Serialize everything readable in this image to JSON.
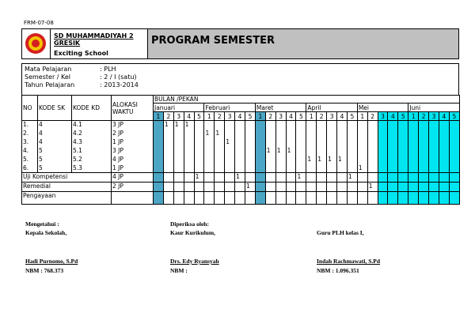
{
  "form_code": "FRM-07-08",
  "header": {
    "school": "SD MUHAMMADIYAH 2 GRESIK",
    "motto": "Exciting School",
    "title": "PROGRAM SEMESTER"
  },
  "info": [
    {
      "label": "Mata Pelajaran",
      "value": ": PLH"
    },
    {
      "label": "Semester / Kel",
      "value": ": 2 / I (satu)"
    },
    {
      "label": "Tahun Pelajaran",
      "value": ": 2013-2014"
    }
  ],
  "table": {
    "columns": [
      "NO",
      "KODE SK",
      "KODE KD",
      "ALOKASI WAKTU"
    ],
    "period_header": "BULAN /PEKAN",
    "months": [
      {
        "name": "Januari",
        "weeks": [
          1,
          2,
          3,
          4,
          5
        ]
      },
      {
        "name": "Februari",
        "weeks": [
          1,
          2,
          3,
          4,
          5
        ]
      },
      {
        "name": "Maret",
        "weeks": [
          1,
          2,
          3,
          4,
          5
        ]
      },
      {
        "name": "April",
        "weeks": [
          1,
          2,
          3,
          4,
          5
        ]
      },
      {
        "name": "Mei",
        "weeks": [
          1,
          2,
          3,
          4,
          5
        ]
      },
      {
        "name": "Juni",
        "weeks": [
          1,
          2,
          3,
          4,
          5
        ]
      }
    ],
    "rows": [
      {
        "no": "1.",
        "sk": 4,
        "kd": "4.1",
        "jp": "3 JP",
        "weeks": [
          null,
          1,
          1,
          1,
          null,
          null,
          null,
          null,
          null,
          null,
          null,
          null,
          null,
          null,
          null,
          null,
          null,
          null,
          null,
          null,
          null,
          null,
          null,
          null,
          null,
          null,
          null,
          null,
          null,
          null
        ]
      },
      {
        "no": "2.",
        "sk": 4,
        "kd": "4.2",
        "jp": "2 JP",
        "weeks": [
          null,
          null,
          null,
          null,
          null,
          1,
          1,
          null,
          null,
          null,
          null,
          null,
          null,
          null,
          null,
          null,
          null,
          null,
          null,
          null,
          null,
          null,
          null,
          null,
          null,
          null,
          null,
          null,
          null,
          null
        ]
      },
      {
        "no": "3.",
        "sk": 4,
        "kd": "4.3",
        "jp": "1 JP",
        "weeks": [
          null,
          null,
          null,
          null,
          null,
          null,
          null,
          1,
          null,
          null,
          null,
          null,
          null,
          null,
          null,
          null,
          null,
          null,
          null,
          null,
          null,
          null,
          null,
          null,
          null,
          null,
          null,
          null,
          null,
          null
        ]
      },
      {
        "no": "4.",
        "sk": 5,
        "kd": "5.1",
        "jp": "3 JP",
        "weeks": [
          null,
          null,
          null,
          null,
          null,
          null,
          null,
          null,
          null,
          null,
          null,
          1,
          1,
          1,
          null,
          null,
          null,
          null,
          null,
          null,
          null,
          null,
          null,
          null,
          null,
          null,
          null,
          null,
          null,
          null
        ]
      },
      {
        "no": "5.",
        "sk": 5,
        "kd": "5.2",
        "jp": "4 JP",
        "weeks": [
          null,
          null,
          null,
          null,
          null,
          null,
          null,
          null,
          null,
          null,
          null,
          null,
          null,
          null,
          null,
          1,
          1,
          1,
          1,
          null,
          null,
          null,
          null,
          null,
          null,
          null,
          null,
          null,
          null,
          null
        ]
      },
      {
        "no": "6.",
        "sk": 5,
        "kd": "5.3",
        "jp": "1 JP",
        "weeks": [
          null,
          null,
          null,
          null,
          null,
          null,
          null,
          null,
          null,
          null,
          null,
          null,
          null,
          null,
          null,
          null,
          null,
          null,
          null,
          null,
          1,
          null,
          null,
          null,
          null,
          null,
          null,
          null,
          null,
          null
        ]
      }
    ],
    "extra_rows": [
      {
        "label": "Uji Kompetensi",
        "jp": "4 JP",
        "weeks": [
          null,
          null,
          null,
          null,
          1,
          null,
          null,
          null,
          1,
          null,
          null,
          null,
          null,
          null,
          1,
          null,
          null,
          null,
          null,
          1,
          null,
          null,
          null,
          null,
          null,
          null,
          null,
          null,
          null,
          null
        ]
      },
      {
        "label": "Remedial",
        "jp": "2 JP",
        "weeks": [
          null,
          null,
          null,
          null,
          null,
          null,
          null,
          null,
          null,
          1,
          null,
          null,
          null,
          null,
          null,
          null,
          null,
          null,
          null,
          null,
          null,
          1,
          null,
          null,
          null,
          null,
          null,
          null,
          null,
          null
        ]
      },
      {
        "label": "Pengayaan",
        "weeks": [
          null,
          null,
          null,
          null,
          null,
          null,
          null,
          null,
          null,
          null,
          null,
          null,
          null,
          null,
          null,
          null,
          null,
          null,
          null,
          null,
          null,
          null,
          null,
          null,
          null,
          null,
          null,
          null,
          null,
          null
        ]
      }
    ]
  },
  "signatures": [
    {
      "lines": [
        "Mengetahui :",
        "Kepala Sekolah,"
      ],
      "name": "Hadi Purnomo, S.Pd",
      "id": "NBM : 768.373"
    },
    {
      "lines": [
        "Diperiksa oleh:",
        "Kaur Kurikulum,"
      ],
      "name": "Drs. Edy Ryansyah",
      "id": "NBM :"
    },
    {
      "lines": [
        "Guru PLH kelas I,"
      ],
      "name": "Indah Rachmawati, S.Pd",
      "id": "NBM : 1.096.351"
    }
  ]
}
